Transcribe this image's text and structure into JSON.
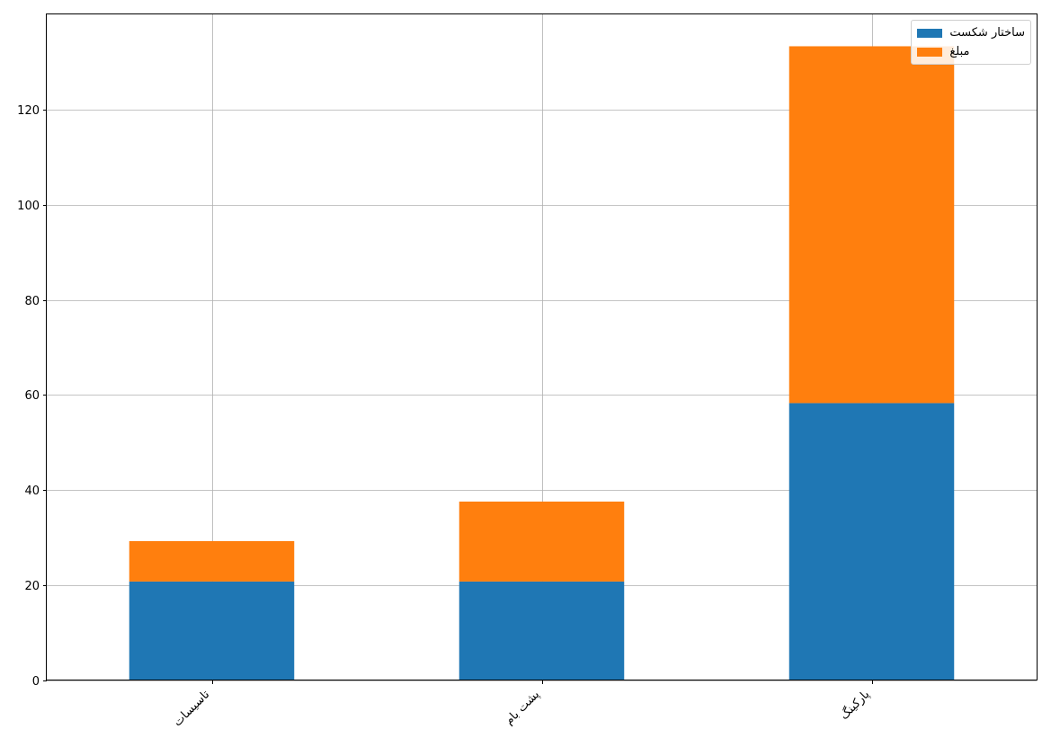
{
  "chart_data": {
    "type": "bar",
    "stacked": true,
    "categories": [
      "تاسیسات",
      "پشت بام",
      "پارکینگ"
    ],
    "series": [
      {
        "name": "ساختار شکست",
        "values": [
          20.8,
          20.8,
          58.3
        ],
        "color": "#1f77b4"
      },
      {
        "name": "مبلغ",
        "values": [
          8.5,
          16.8,
          75.0
        ],
        "color": "#ff7f0e"
      }
    ],
    "yticks": [
      "0",
      "20",
      "40",
      "60",
      "80",
      "100",
      "120"
    ],
    "ylim": [
      0,
      140
    ],
    "grid": true,
    "legend_position": "top-right",
    "xtick_rotation": "45"
  }
}
